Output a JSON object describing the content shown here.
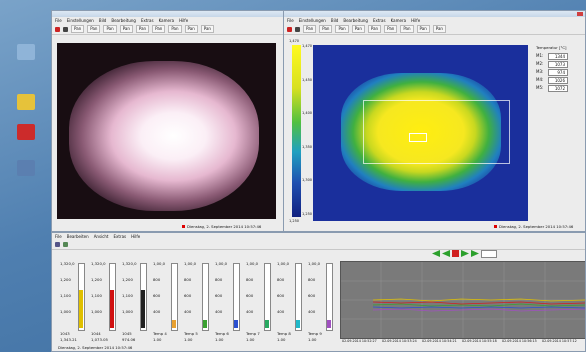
{
  "desktop": {
    "icons": [
      {
        "label": "",
        "color": "#8fb4d8"
      },
      {
        "label": "",
        "color": "#e6c23a"
      },
      {
        "label": "",
        "color": "#cc2b2b"
      },
      {
        "label": "",
        "color": "#5b7fb0"
      }
    ]
  },
  "left_window": {
    "title": "",
    "menu": [
      "File",
      "Einstellungen",
      "Bild",
      "Bearbeitung",
      "Extras",
      "Kamera",
      "Hilfe"
    ],
    "tabs": [
      "Pan",
      "Pan",
      "Pan",
      "Pan",
      "Pan",
      "Pan",
      "Pan",
      "Pan",
      "Pan"
    ],
    "status": "Dienstag, 2. September 2014 10:57:46"
  },
  "right_window": {
    "title": "",
    "menu": [
      "File",
      "Einstellungen",
      "Bild",
      "Bearbeitung",
      "Extras",
      "Kamera",
      "Hilfe"
    ],
    "tabs": [
      "Pan",
      "Pan",
      "Pan",
      "Pan",
      "Pan",
      "Pan",
      "Pan",
      "Pan",
      "Pan"
    ],
    "scale": {
      "top": "1,470",
      "bottom": "1,250",
      "ticks": [
        "1,470",
        "1,450",
        "1,400",
        "1,350",
        "1,300",
        "1,250"
      ]
    },
    "measure_header": "Temperatur [°C]",
    "measurements": [
      {
        "label": "M1:",
        "value": "1344"
      },
      {
        "label": "M2:",
        "value": "1073"
      },
      {
        "label": "M3:",
        "value": "974"
      },
      {
        "label": "M4:",
        "value": "1026"
      },
      {
        "label": "M5:",
        "value": "1072"
      }
    ],
    "status": "Dienstag, 2. September 2014 10:57:46"
  },
  "bottom_window": {
    "menu": [
      "File",
      "Bearbeiten",
      "Ansicht",
      "Extras",
      "Hilfe"
    ],
    "channels": [
      {
        "top": "1,320,0",
        "vals": [
          "1,200",
          "1,100",
          "1,000"
        ],
        "color": "#e0c000",
        "name": "1043",
        "value": "1,343.21"
      },
      {
        "top": "1,320,0",
        "vals": [
          "1,200",
          "1,100",
          "1,000"
        ],
        "color": "#d01010",
        "name": "1044",
        "value": "1,073.05"
      },
      {
        "top": "1,320,0",
        "vals": [
          "1,200",
          "1,100",
          "1,000"
        ],
        "color": "#202020",
        "name": "1045",
        "value": "974.06"
      },
      {
        "top": "1,00,0",
        "vals": [
          "800",
          "600",
          "400"
        ],
        "color": "#e8a030",
        "name": "Temp 4",
        "value": "1.00"
      },
      {
        "top": "1,00,0",
        "vals": [
          "800",
          "600",
          "400"
        ],
        "color": "#3aa030",
        "name": "Temp 5",
        "value": "1.00"
      },
      {
        "top": "1,00,0",
        "vals": [
          "800",
          "600",
          "400"
        ],
        "color": "#2b50d0",
        "name": "Temp 6",
        "value": "1.00"
      },
      {
        "top": "1,00,0",
        "vals": [
          "800",
          "600",
          "400"
        ],
        "color": "#28a860",
        "name": "Temp 7",
        "value": "1.00"
      },
      {
        "top": "1,00,0",
        "vals": [
          "800",
          "600",
          "400"
        ],
        "color": "#20b8c8",
        "name": "Temp 8",
        "value": "1.00"
      },
      {
        "top": "1,00,0",
        "vals": [
          "800",
          "600",
          "400"
        ],
        "color": "#a050c0",
        "name": "Temp 9",
        "value": "1.00"
      }
    ],
    "time_labels": [
      "02.09.2014 10:52:27",
      "02.09.2014 10:53:24",
      "02.09.2014 10:54:21",
      "02.09.2014 10:55:18",
      "02.09.2014 10:56:15",
      "02.09.2014 10:57:12"
    ],
    "status": "Dienstag, 2. September 2014 10:57:46"
  }
}
